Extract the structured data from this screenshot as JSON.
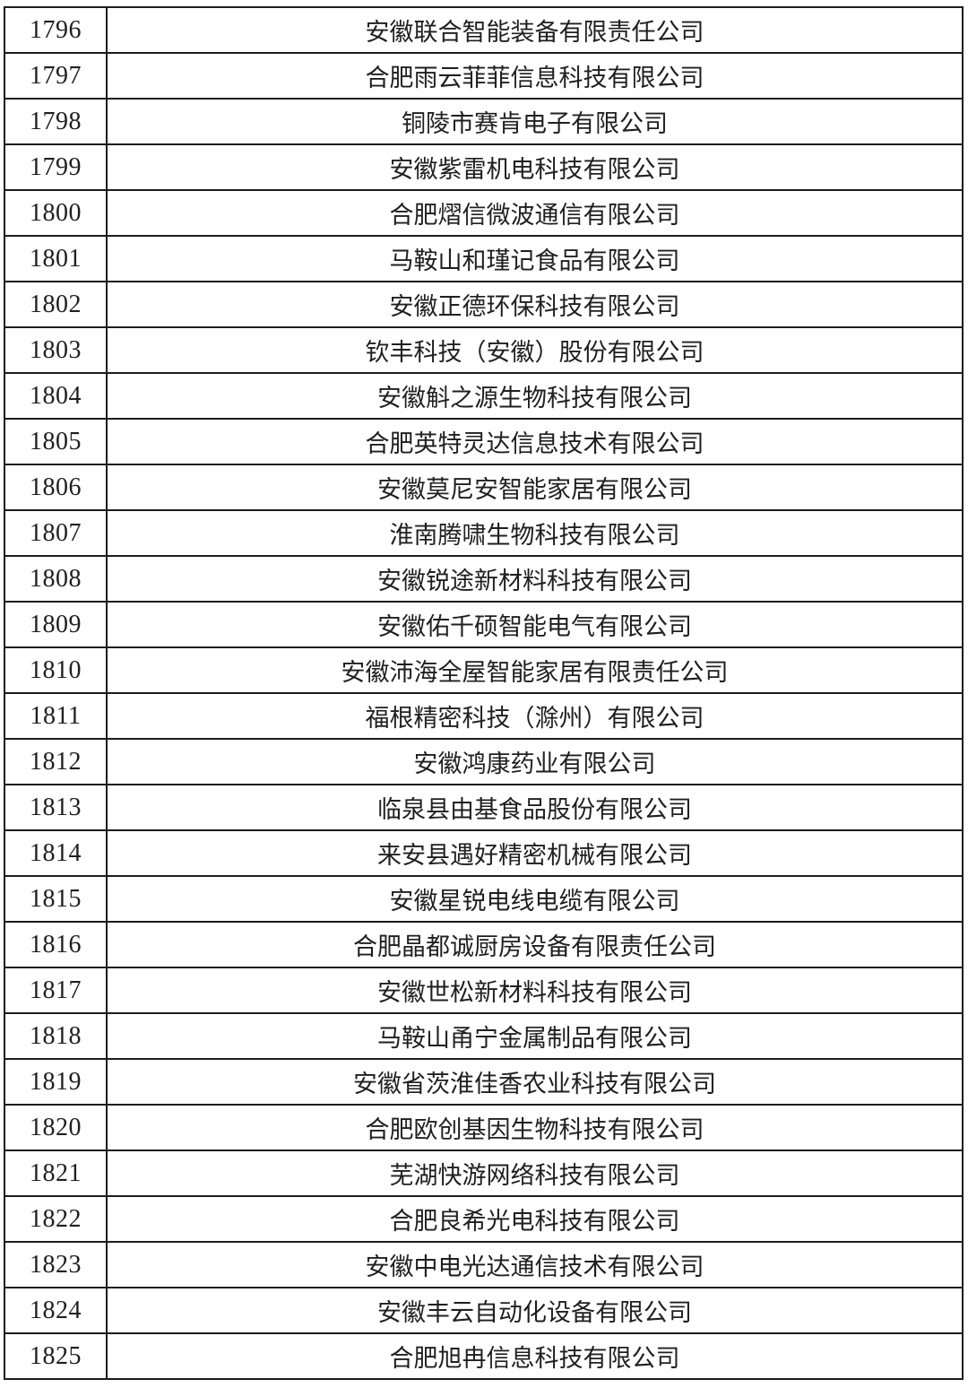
{
  "table": {
    "rows": [
      {
        "no": "1796",
        "company": "安徽联合智能装备有限责任公司"
      },
      {
        "no": "1797",
        "company": "合肥雨云菲菲信息科技有限公司"
      },
      {
        "no": "1798",
        "company": "铜陵市赛肯电子有限公司"
      },
      {
        "no": "1799",
        "company": "安徽紫雷机电科技有限公司"
      },
      {
        "no": "1800",
        "company": "合肥熠信微波通信有限公司"
      },
      {
        "no": "1801",
        "company": "马鞍山和瑾记食品有限公司"
      },
      {
        "no": "1802",
        "company": "安徽正德环保科技有限公司"
      },
      {
        "no": "1803",
        "company": "钦丰科技（安徽）股份有限公司"
      },
      {
        "no": "1804",
        "company": "安徽斛之源生物科技有限公司"
      },
      {
        "no": "1805",
        "company": "合肥英特灵达信息技术有限公司"
      },
      {
        "no": "1806",
        "company": "安徽莫尼安智能家居有限公司"
      },
      {
        "no": "1807",
        "company": "淮南腾啸生物科技有限公司"
      },
      {
        "no": "1808",
        "company": "安徽锐途新材料科技有限公司"
      },
      {
        "no": "1809",
        "company": "安徽佑千硕智能电气有限公司"
      },
      {
        "no": "1810",
        "company": "安徽沛海全屋智能家居有限责任公司"
      },
      {
        "no": "1811",
        "company": "福根精密科技（滁州）有限公司"
      },
      {
        "no": "1812",
        "company": "安徽鸿康药业有限公司"
      },
      {
        "no": "1813",
        "company": "临泉县由基食品股份有限公司"
      },
      {
        "no": "1814",
        "company": "来安县遇好精密机械有限公司"
      },
      {
        "no": "1815",
        "company": "安徽星锐电线电缆有限公司"
      },
      {
        "no": "1816",
        "company": "合肥晶都诚厨房设备有限责任公司"
      },
      {
        "no": "1817",
        "company": "安徽世松新材料科技有限公司"
      },
      {
        "no": "1818",
        "company": "马鞍山甬宁金属制品有限公司"
      },
      {
        "no": "1819",
        "company": "安徽省茨淮佳香农业科技有限公司"
      },
      {
        "no": "1820",
        "company": "合肥欧创基因生物科技有限公司"
      },
      {
        "no": "1821",
        "company": "芜湖快游网络科技有限公司"
      },
      {
        "no": "1822",
        "company": "合肥良希光电科技有限公司"
      },
      {
        "no": "1823",
        "company": "安徽中电光达通信技术有限公司"
      },
      {
        "no": "1824",
        "company": "安徽丰云自动化设备有限公司"
      },
      {
        "no": "1825",
        "company": "合肥旭冉信息科技有限公司"
      }
    ],
    "border_color": "#1c1c1c",
    "text_color": "#1f1f1f"
  }
}
